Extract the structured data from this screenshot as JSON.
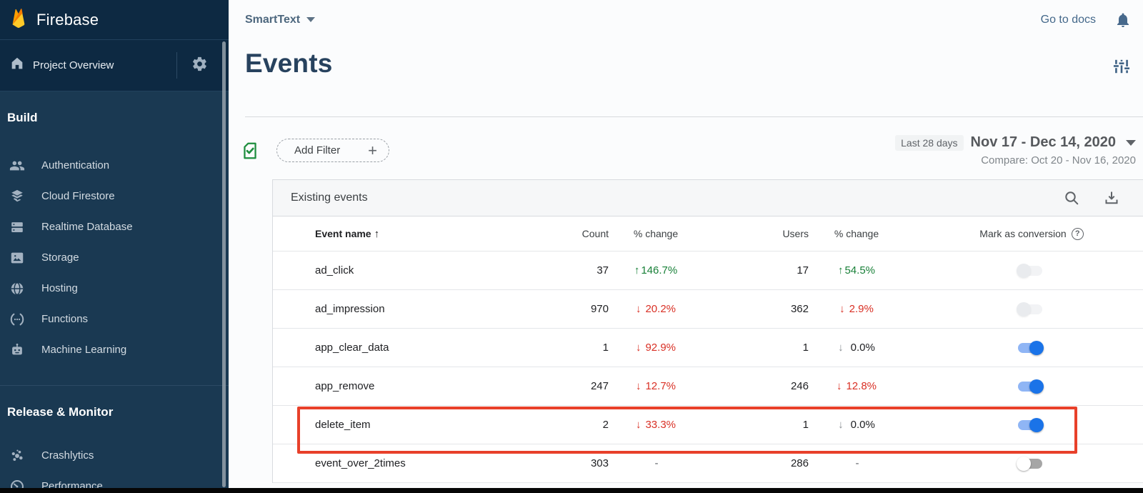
{
  "sidebar": {
    "brand": "Firebase",
    "project_overview": "Project Overview",
    "sections": [
      {
        "label": "Build",
        "items": [
          {
            "label": "Authentication",
            "icon": "people-icon"
          },
          {
            "label": "Cloud Firestore",
            "icon": "firestore-icon"
          },
          {
            "label": "Realtime Database",
            "icon": "database-icon"
          },
          {
            "label": "Storage",
            "icon": "storage-icon"
          },
          {
            "label": "Hosting",
            "icon": "globe-icon"
          },
          {
            "label": "Functions",
            "icon": "functions-icon"
          },
          {
            "label": "Machine Learning",
            "icon": "robot-icon"
          }
        ]
      },
      {
        "label": "Release & Monitor",
        "items": [
          {
            "label": "Crashlytics",
            "icon": "crashlytics-icon"
          },
          {
            "label": "Performance",
            "icon": "speedometer-icon"
          }
        ]
      }
    ]
  },
  "topbar": {
    "project_name": "SmartText",
    "go_to_docs": "Go to docs"
  },
  "page": {
    "title": "Events"
  },
  "filter_bar": {
    "add_filter_label": "Add Filter",
    "plus": "+",
    "range_badge": "Last 28 days",
    "date_range": "Nov 17 - Dec 14, 2020",
    "compare": "Compare: Oct 20 - Nov 16, 2020"
  },
  "table": {
    "title": "Existing events",
    "columns": {
      "name": "Event name",
      "count": "Count",
      "count_change": "% change",
      "users": "Users",
      "users_change": "% change",
      "mark": "Mark as conversion",
      "sort_arrow": "↑",
      "help": "?"
    },
    "rows": [
      {
        "name": "ad_click",
        "count": "37",
        "count_dir": "up",
        "count_change": "146.7%",
        "count_tone": "green",
        "users": "17",
        "users_dir": "up",
        "users_change": "54.5%",
        "users_tone": "green",
        "toggle": "disabled",
        "highlighted": false
      },
      {
        "name": "ad_impression",
        "count": "970",
        "count_dir": "down",
        "count_change": "20.2%",
        "count_tone": "red",
        "users": "362",
        "users_dir": "down",
        "users_change": "2.9%",
        "users_tone": "red",
        "toggle": "disabled",
        "highlighted": false
      },
      {
        "name": "app_clear_data",
        "count": "1",
        "count_dir": "down",
        "count_change": "92.9%",
        "count_tone": "red",
        "users": "1",
        "users_dir": "down",
        "users_change": "0.0%",
        "users_tone": "neutral",
        "toggle": "on",
        "highlighted": false
      },
      {
        "name": "app_remove",
        "count": "247",
        "count_dir": "down",
        "count_change": "12.7%",
        "count_tone": "red",
        "users": "246",
        "users_dir": "down",
        "users_change": "12.8%",
        "users_tone": "red",
        "toggle": "on",
        "highlighted": false
      },
      {
        "name": "delete_item",
        "count": "2",
        "count_dir": "down",
        "count_change": "33.3%",
        "count_tone": "red",
        "users": "1",
        "users_dir": "down",
        "users_change": "0.0%",
        "users_tone": "neutral",
        "toggle": "on",
        "highlighted": true
      },
      {
        "name": "event_over_2times",
        "count": "303",
        "count_dir": "none",
        "count_change": "-",
        "count_tone": "plain",
        "users": "286",
        "users_dir": "none",
        "users_change": "-",
        "users_tone": "plain",
        "toggle": "off",
        "highlighted": false
      }
    ]
  },
  "colors": {
    "sidebar_bg": "#1a3952",
    "sidebar_header_bg": "#0d2942",
    "accent_blue": "#1a73e8",
    "toggle_track_on": "#8fb5f5",
    "positive_green": "#188038",
    "negative_red": "#d93025",
    "highlight_red": "#e8402a",
    "title_navy": "#27425e",
    "filter_green": "#1e8e3e"
  }
}
